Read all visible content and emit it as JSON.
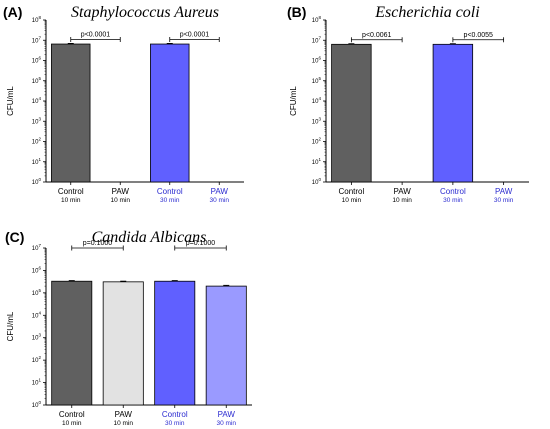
{
  "chart_data": [
    {
      "type": "bar",
      "panel": "(A)",
      "title": "Staphylococcus Aureus",
      "ylabel": "CFU/mL",
      "yscale": "log",
      "ylim": [
        1,
        100000000
      ],
      "ytick_exponents": [
        0,
        1,
        2,
        3,
        4,
        5,
        6,
        7,
        8
      ],
      "categories": [
        {
          "line1": "Control",
          "line2": "10 min",
          "color": "#606060",
          "label_color": "#000000"
        },
        {
          "line1": "PAW",
          "line2": "10 min",
          "color": "#ffffff",
          "label_color": "#000000"
        },
        {
          "line1": "Control",
          "line2": "30 min",
          "color": "#6060ff",
          "label_color": "#2a2ad0"
        },
        {
          "line1": "PAW",
          "line2": "30 min",
          "color": "#9a9aff",
          "label_color": "#2a2ad0"
        }
      ],
      "values": [
        6500000,
        0,
        6500000,
        0
      ],
      "errors": [
        400000,
        0,
        400000,
        0
      ],
      "comparisons": [
        {
          "from": 0,
          "to": 1,
          "label": "p<0.0001"
        },
        {
          "from": 2,
          "to": 3,
          "label": "p<0.0001"
        }
      ]
    },
    {
      "type": "bar",
      "panel": "(B)",
      "title": "Escherichia coli",
      "ylabel": "CFU/mL",
      "yscale": "log",
      "ylim": [
        1,
        100000000
      ],
      "ytick_exponents": [
        0,
        1,
        2,
        3,
        4,
        5,
        6,
        7,
        8
      ],
      "categories": [
        {
          "line1": "Control",
          "line2": "10 min",
          "color": "#606060",
          "label_color": "#000000"
        },
        {
          "line1": "PAW",
          "line2": "10 min",
          "color": "#ffffff",
          "label_color": "#000000"
        },
        {
          "line1": "Control",
          "line2": "30 min",
          "color": "#6060ff",
          "label_color": "#2a2ad0"
        },
        {
          "line1": "PAW",
          "line2": "30 min",
          "color": "#9a9aff",
          "label_color": "#2a2ad0"
        }
      ],
      "values": [
        6300000,
        0,
        6300000,
        0
      ],
      "errors": [
        400000,
        0,
        400000,
        0
      ],
      "comparisons": [
        {
          "from": 0,
          "to": 1,
          "label": "p<0.0061"
        },
        {
          "from": 2,
          "to": 3,
          "label": "p<0.0055"
        }
      ]
    },
    {
      "type": "bar",
      "panel": "(C)",
      "title": "Candida Albicans",
      "ylabel": "CFU/mL",
      "yscale": "log",
      "ylim": [
        1,
        10000000
      ],
      "ytick_exponents": [
        0,
        1,
        2,
        3,
        4,
        5,
        6,
        7
      ],
      "categories": [
        {
          "line1": "Control",
          "line2": "10 min",
          "color": "#606060",
          "label_color": "#000000"
        },
        {
          "line1": "PAW",
          "line2": "10 min",
          "color": "#e2e2e2",
          "label_color": "#000000"
        },
        {
          "line1": "Control",
          "line2": "30 min",
          "color": "#6060ff",
          "label_color": "#2a2ad0"
        },
        {
          "line1": "PAW",
          "line2": "30 min",
          "color": "#9a9aff",
          "label_color": "#2a2ad0"
        }
      ],
      "values": [
        330000,
        310000,
        330000,
        200000
      ],
      "errors": [
        20000,
        20000,
        20000,
        15000
      ],
      "comparisons": [
        {
          "from": 0,
          "to": 1,
          "label": "p=0.1000"
        },
        {
          "from": 2,
          "to": 3,
          "label": "p=0.1000"
        }
      ]
    }
  ]
}
